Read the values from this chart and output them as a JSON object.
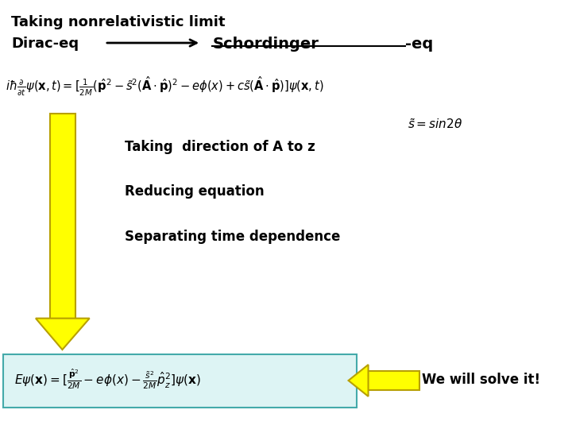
{
  "bg_color": "#ffffff",
  "title_text": "Taking nonrelativistic limit",
  "dirac_text": "Dirac-eq",
  "schordinger_text": "Schordinger",
  "schordinger_suffix": "-eq",
  "step1": "Taking  direction of A to z",
  "step2": "Reducing equation",
  "step3": "Separating time dependence",
  "solve_text": "We will solve it!",
  "arrow_color": "#ffff00",
  "arrow_edge_color": "#b8a000",
  "box_facecolor": "#ddf4f4",
  "box_edgecolor": "#44aaaa"
}
